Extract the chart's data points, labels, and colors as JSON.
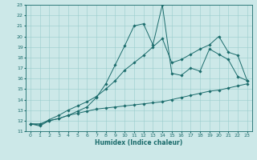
{
  "xlabel": "Humidex (Indice chaleur)",
  "bg_color": "#cce8e8",
  "line_color": "#1a6b6b",
  "grid_color": "#99cccc",
  "xlim": [
    -0.5,
    23.5
  ],
  "ylim": [
    11,
    23
  ],
  "xticks": [
    0,
    1,
    2,
    3,
    4,
    5,
    6,
    7,
    8,
    9,
    10,
    11,
    12,
    13,
    14,
    15,
    16,
    17,
    18,
    19,
    20,
    21,
    22,
    23
  ],
  "yticks": [
    11,
    12,
    13,
    14,
    15,
    16,
    17,
    18,
    19,
    20,
    21,
    22,
    23
  ],
  "hours": [
    0,
    1,
    2,
    3,
    4,
    5,
    6,
    7,
    8,
    9,
    10,
    11,
    12,
    13,
    14,
    15,
    16,
    17,
    18,
    19,
    20,
    21,
    22,
    23
  ],
  "main_line": [
    11.7,
    11.5,
    12.0,
    12.2,
    12.5,
    12.9,
    13.3,
    14.2,
    15.5,
    17.3,
    19.1,
    21.0,
    21.2,
    19.2,
    23.0,
    16.5,
    16.3,
    17.0,
    16.7,
    18.8,
    18.3,
    17.8,
    16.2,
    15.8
  ],
  "upper_line": [
    11.7,
    11.6,
    12.1,
    12.5,
    13.0,
    13.4,
    13.8,
    14.3,
    15.0,
    15.8,
    16.8,
    17.5,
    18.2,
    19.0,
    19.8,
    17.5,
    17.8,
    18.3,
    18.8,
    19.2,
    20.0,
    18.5,
    18.2,
    15.8
  ],
  "lower_line": [
    11.7,
    11.7,
    12.0,
    12.2,
    12.5,
    12.7,
    12.9,
    13.1,
    13.2,
    13.3,
    13.4,
    13.5,
    13.6,
    13.7,
    13.8,
    14.0,
    14.2,
    14.4,
    14.6,
    14.8,
    14.9,
    15.1,
    15.3,
    15.5
  ]
}
